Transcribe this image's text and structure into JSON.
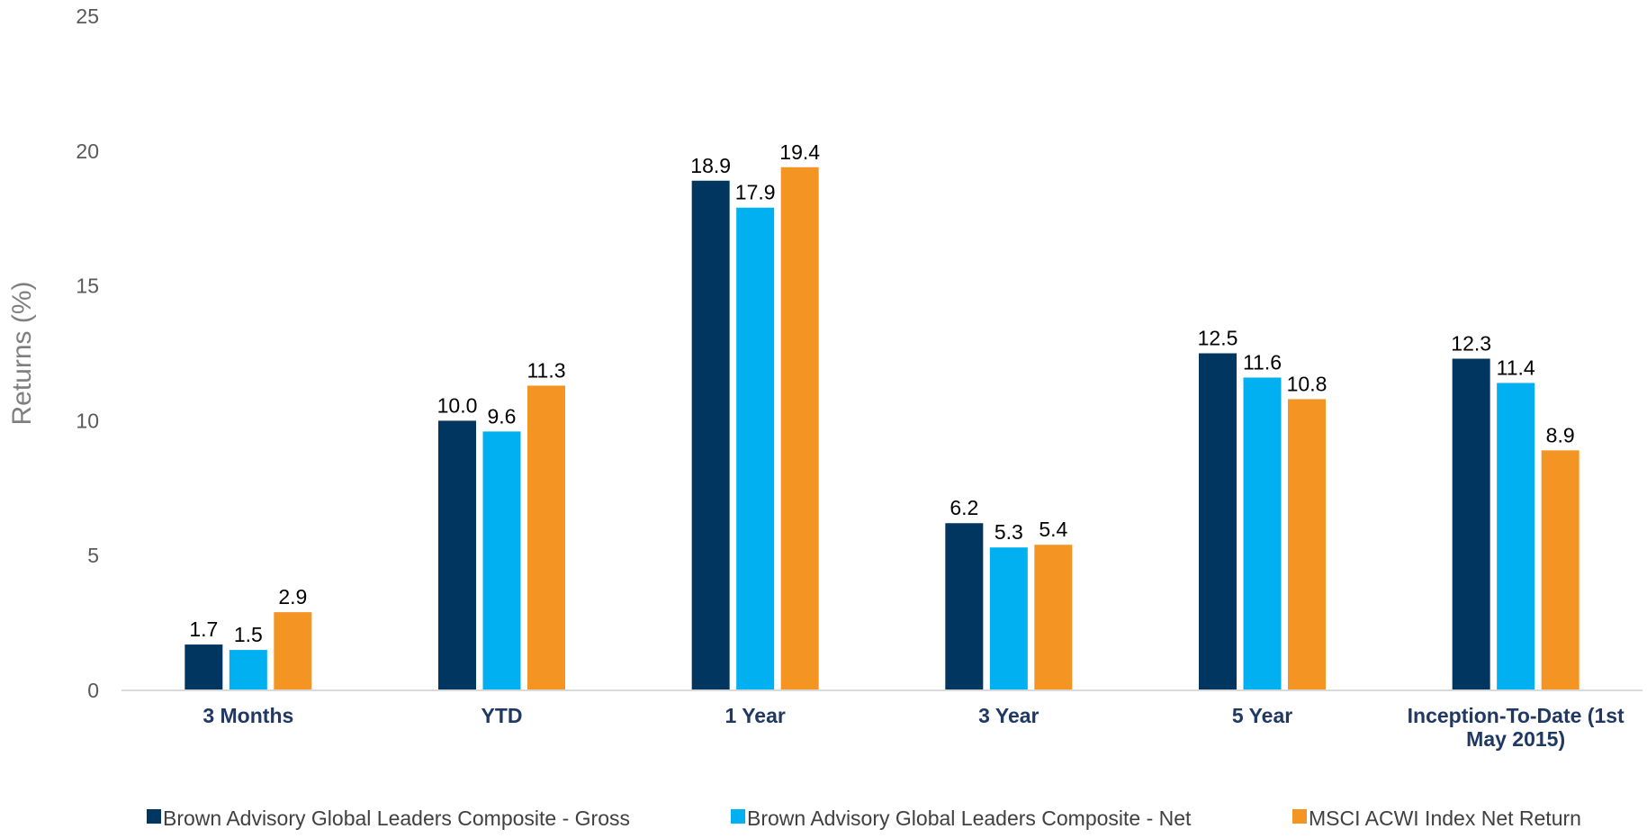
{
  "chart_data": {
    "type": "bar",
    "title": "",
    "xlabel": "",
    "ylabel": "Returns (%)",
    "ylim": [
      0,
      25
    ],
    "yticks": [
      "0",
      "5",
      "10",
      "15",
      "20",
      "25"
    ],
    "grid": false,
    "legend_position": "bottom",
    "categories": [
      [
        "3 Months"
      ],
      [
        "YTD"
      ],
      [
        "1 Year"
      ],
      [
        "3 Year"
      ],
      [
        "5 Year"
      ],
      [
        "Inception-To-Date (1st",
        "May 2015)"
      ]
    ],
    "series": [
      {
        "name": "Brown Advisory Global Leaders Composite - Gross",
        "color": "#003660",
        "values": [
          1.7,
          10.0,
          18.9,
          6.2,
          12.5,
          12.3
        ],
        "labels": [
          "1.7",
          "10.0",
          "18.9",
          "6.2",
          "12.5",
          "12.3"
        ]
      },
      {
        "name": "Brown Advisory Global Leaders Composite - Net",
        "color": "#00b0f0",
        "values": [
          1.5,
          9.6,
          17.9,
          5.3,
          11.6,
          11.4
        ],
        "labels": [
          "1.5",
          "9.6",
          "17.9",
          "5.3",
          "11.6",
          "11.4"
        ]
      },
      {
        "name": "MSCI ACWI Index Net Return",
        "color": "#f39423",
        "values": [
          2.9,
          11.3,
          19.4,
          5.4,
          10.8,
          8.9
        ],
        "labels": [
          "2.9",
          "11.3",
          "19.4",
          "5.4",
          "10.8",
          "8.9"
        ]
      }
    ]
  }
}
